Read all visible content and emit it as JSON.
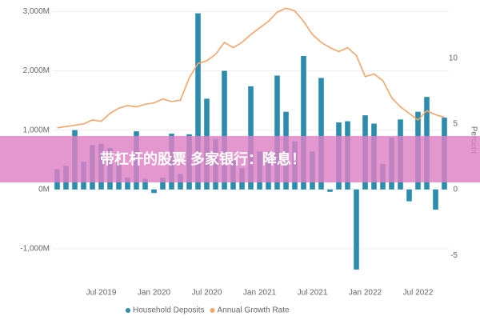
{
  "chart_data": {
    "type": "bar_line",
    "annotation": "带杠杆的股票 多家银行：降息！",
    "y2_label": "Percent",
    "categories": [
      null,
      null,
      null,
      null,
      null,
      "Jul 2019",
      null,
      null,
      null,
      null,
      null,
      "Jan 2020",
      null,
      null,
      null,
      null,
      null,
      "Jul 2020",
      null,
      null,
      null,
      null,
      null,
      "Jan 2021",
      null,
      null,
      null,
      null,
      null,
      "Jul 2021",
      null,
      null,
      null,
      null,
      null,
      "Jan 2022",
      null,
      null,
      null,
      null,
      null,
      "Jul 2022",
      null,
      null,
      null
    ],
    "series": [
      {
        "name": "Household Deposits",
        "color": "#2b8cad",
        "values": [
          340,
          400,
          1000,
          470,
          750,
          770,
          700,
          470,
          200,
          980,
          180,
          -60,
          200,
          940,
          260,
          930,
          2970,
          1530,
          850,
          2000,
          500,
          360,
          1740,
          640,
          640,
          1920,
          1310,
          810,
          2250,
          640,
          1880,
          -40,
          1130,
          1150,
          -1350,
          1250,
          1110,
          430,
          870,
          1180,
          -200,
          1310,
          1560,
          -340,
          1210
        ]
      },
      {
        "name": "Annual Growth Rate",
        "color": "#f5a467",
        "axis": "y2",
        "values": [
          4.7,
          4.8,
          4.9,
          5.0,
          5.3,
          5.2,
          5.8,
          6.2,
          6.4,
          6.3,
          6.5,
          6.6,
          6.9,
          6.7,
          6.8,
          8.5,
          9.6,
          9.8,
          10.3,
          11.2,
          10.8,
          11.2,
          11.8,
          12.3,
          12.8,
          13.5,
          13.8,
          13.6,
          12.8,
          11.8,
          11.2,
          10.8,
          10.5,
          10.8,
          10.2,
          8.6,
          8.8,
          8.3,
          7.0,
          6.3,
          5.8,
          5.3,
          6.0,
          5.7,
          5.5
        ]
      }
    ],
    "ylim": [
      -1500,
      3100
    ],
    "yticks": [
      {
        "value": -1000,
        "label": "-1,000M"
      },
      {
        "value": 0,
        "label": "0M"
      },
      {
        "value": 1000,
        "label": "1,000M"
      },
      {
        "value": 2000,
        "label": "2,000M"
      },
      {
        "value": 3000,
        "label": "3,000M"
      }
    ],
    "y2lim": [
      -6.75,
      14
    ],
    "y2ticks": [
      -5,
      0,
      5,
      10
    ],
    "legend": "bottom"
  }
}
